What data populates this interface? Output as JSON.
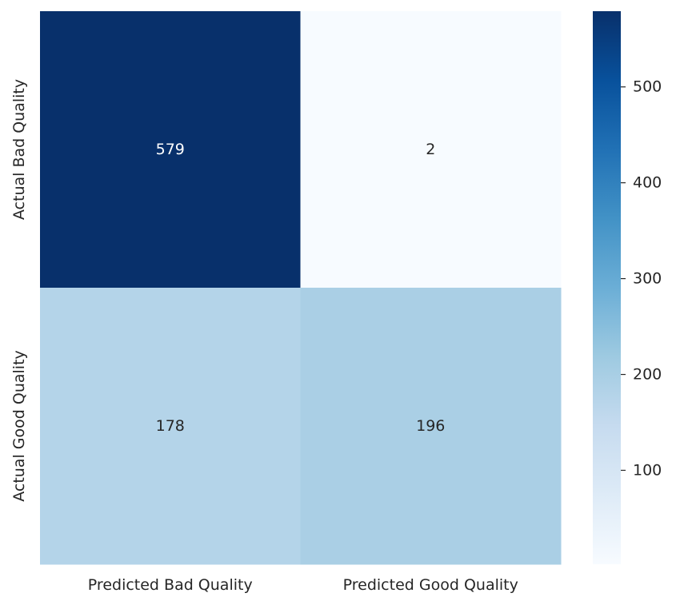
{
  "chart_data": {
    "type": "heatmap",
    "rows": [
      "Actual Bad Quality",
      "Actual Good Quality"
    ],
    "columns": [
      "Predicted Bad Quality",
      "Predicted Good Quality"
    ],
    "values": [
      [
        579,
        2
      ],
      [
        178,
        196
      ]
    ],
    "cmap": "Blues",
    "colorbar": {
      "min": 2,
      "max": 579,
      "ticks": [
        100,
        200,
        300,
        400,
        500
      ],
      "tick_labels": [
        "100",
        "200",
        "300",
        "400",
        "500"
      ]
    },
    "text_colors": {
      "dark": "#262626",
      "light": "#ffffff"
    },
    "title": "",
    "xlabel": "",
    "ylabel": ""
  }
}
